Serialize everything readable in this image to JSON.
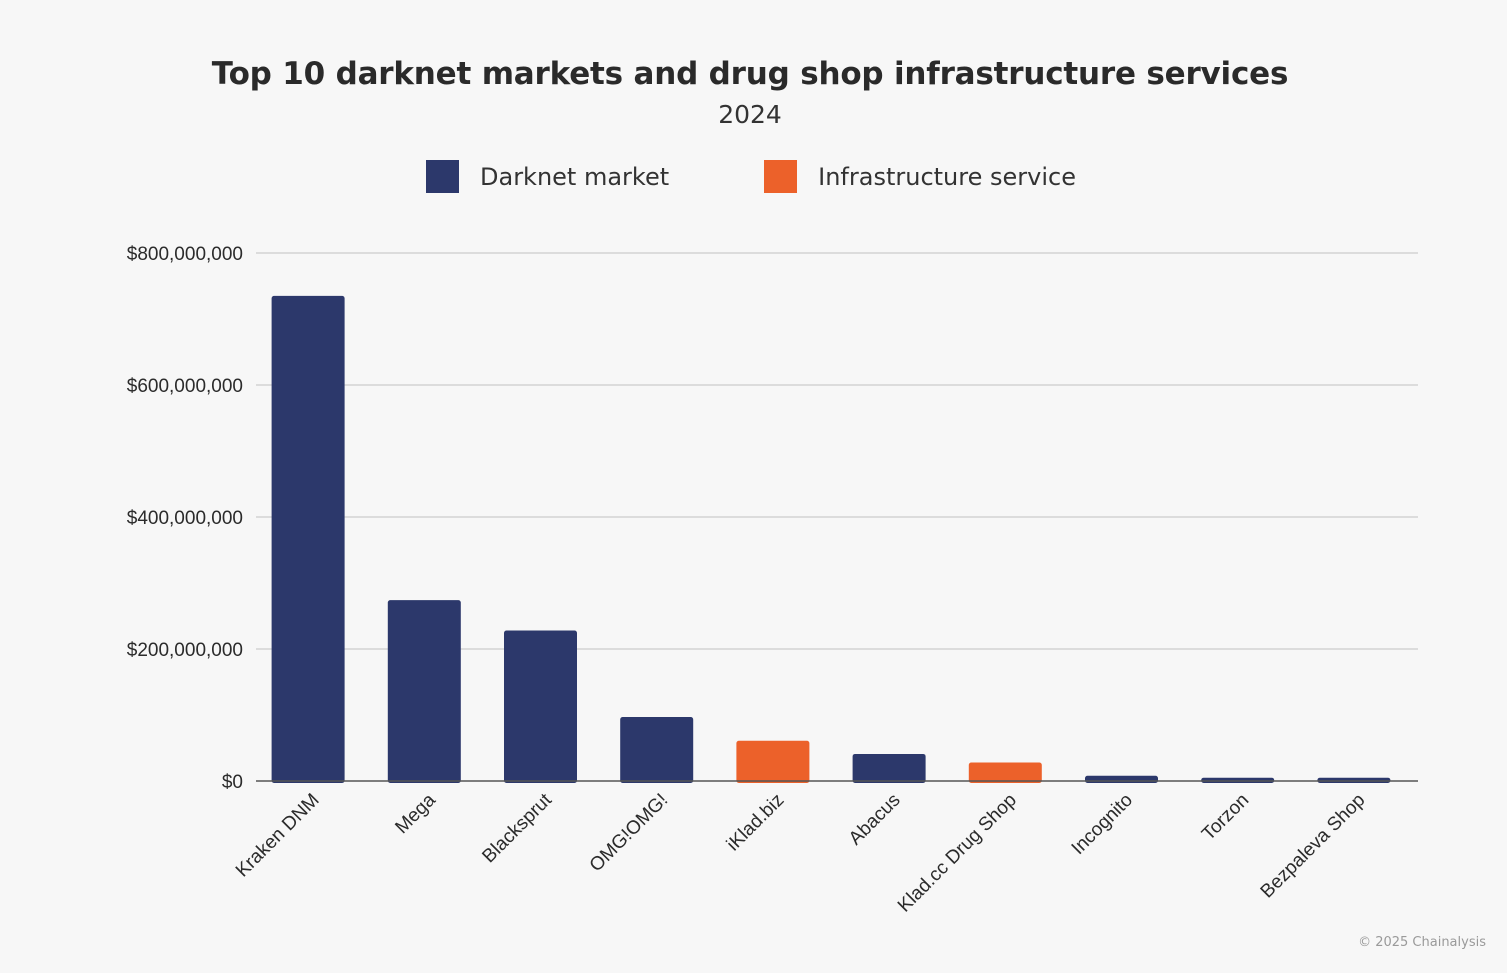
{
  "chart_data": {
    "type": "bar",
    "title": "Top 10 darknet markets and drug shop infrastructure services",
    "subtitle": "2024",
    "xlabel": "",
    "ylabel": "",
    "ylim": [
      0,
      800000000
    ],
    "yticks": [
      0,
      200000000,
      400000000,
      600000000,
      800000000
    ],
    "ytick_labels": [
      "$0",
      "$200,000,000",
      "$400,000,000",
      "$600,000,000",
      "$800,000,000"
    ],
    "grid": true,
    "legend_position": "top-center",
    "legend": [
      {
        "name": "Darknet market",
        "color": "#2c386b"
      },
      {
        "name": "Infrastructure service",
        "color": "#ec612a"
      }
    ],
    "categories": [
      "Kraken DNM",
      "Mega",
      "Blacksprut",
      "OMG!OMG!",
      "iKlad.biz",
      "Abacus",
      "Klad.cc Drug Shop",
      "Incognito",
      "Torzon",
      "Bezpaleva Shop"
    ],
    "values": [
      735000000,
      274000000,
      228000000,
      97000000,
      61000000,
      41000000,
      28000000,
      8000000,
      5000000,
      5000000
    ],
    "series_type": [
      "Darknet market",
      "Darknet market",
      "Darknet market",
      "Darknet market",
      "Infrastructure service",
      "Darknet market",
      "Infrastructure service",
      "Darknet market",
      "Darknet market",
      "Darknet market"
    ]
  },
  "footer": "© 2025 Chainalysis"
}
